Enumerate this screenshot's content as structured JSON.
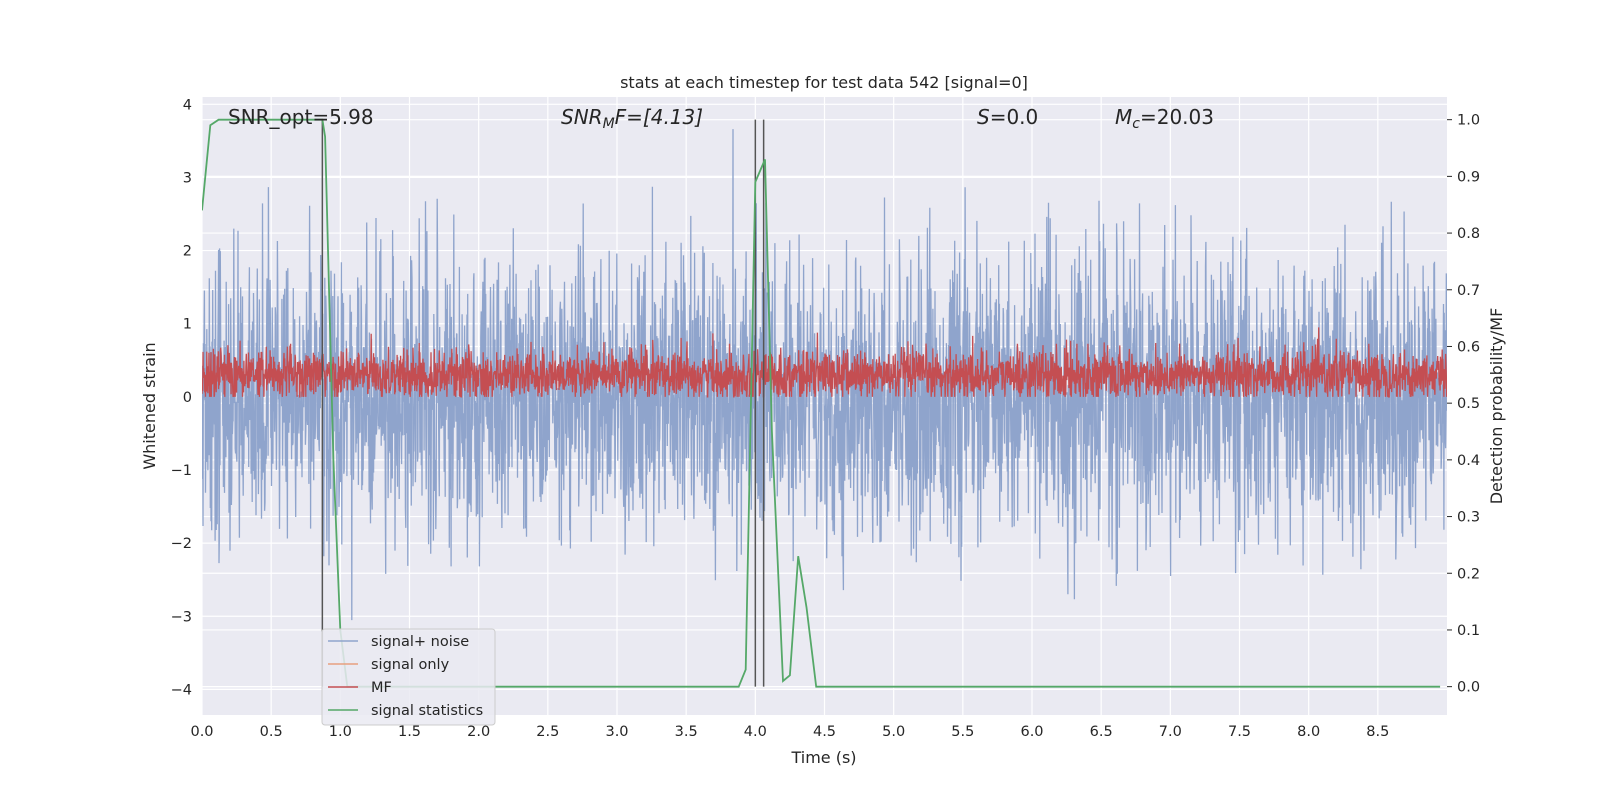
{
  "chart_data": {
    "type": "line",
    "title": "stats at each timestep for test data 542 [signal=0]",
    "xlabel": "Time (s)",
    "ylabel": "Whitened strain",
    "y2label": "Detection probability/MF",
    "xlim": [
      0,
      9.0
    ],
    "ylim": [
      -4.35,
      4.1
    ],
    "y2lim": [
      -0.05,
      1.04
    ],
    "xticks": [
      "0.0",
      "0.5",
      "1.0",
      "1.5",
      "2.0",
      "2.5",
      "3.0",
      "3.5",
      "4.0",
      "4.5",
      "5.0",
      "5.5",
      "6.0",
      "6.5",
      "7.0",
      "7.5",
      "8.0",
      "8.5"
    ],
    "yticks": [
      "−4",
      "−3",
      "−2",
      "−1",
      "0",
      "1",
      "2",
      "3",
      "4"
    ],
    "y2ticks": [
      "0.0",
      "0.1",
      "0.2",
      "0.3",
      "0.4",
      "0.5",
      "0.6",
      "0.7",
      "0.8",
      "0.9",
      "1.0"
    ],
    "grid": true,
    "legend_position": "bottom-left",
    "annotations": {
      "snr_opt": "SNR_opt=5.98",
      "snr_mf_main": "SNR",
      "snr_mf_sub": "M",
      "snr_mf_rest": "F=[4.13]",
      "s_main": "S",
      "s_rest": "=0.0",
      "mc_main": "M",
      "mc_sub": "c",
      "mc_rest": "=20.03"
    },
    "series": [
      {
        "name": "signal+ noise",
        "color": "#8fa4cc",
        "style": "dense noise, roughly −3.5 to 3.7"
      },
      {
        "name": "signal only",
        "color": "#e8a07f",
        "values": []
      },
      {
        "name": "MF",
        "color": "#c44e52",
        "style": "dense band, roughly 0 to 1.0"
      },
      {
        "name": "signal statistics",
        "color": "#55a868",
        "axis": "right",
        "x": [
          0.0,
          0.06,
          0.12,
          0.3,
          0.6,
          0.87,
          0.89,
          0.95,
          1.0,
          1.05,
          3.5,
          3.88,
          3.93,
          4.0,
          4.07,
          4.12,
          4.2,
          4.25,
          4.31,
          4.37,
          4.44,
          8.95
        ],
        "values": [
          0.84,
          0.99,
          1.0,
          1.0,
          1.0,
          1.0,
          0.97,
          0.4,
          0.1,
          0.0,
          0.0,
          0.0,
          0.03,
          0.89,
          0.93,
          0.45,
          0.01,
          0.02,
          0.23,
          0.14,
          0.0,
          0.0
        ]
      }
    ],
    "vlines_x": [
      0.87,
      4.0,
      4.06
    ]
  }
}
